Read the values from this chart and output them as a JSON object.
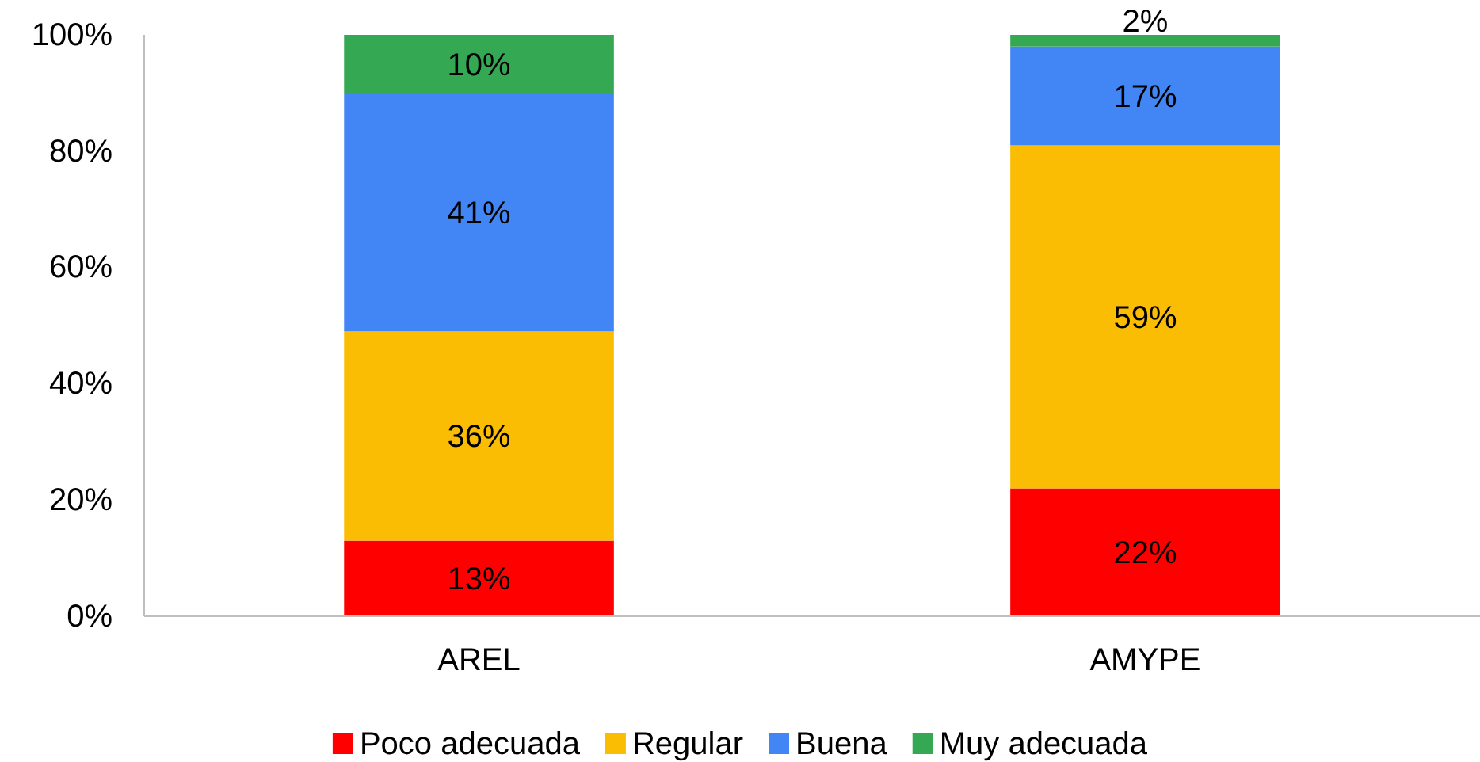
{
  "chart_data": {
    "type": "bar",
    "stacked": true,
    "categories": [
      "AREL",
      "AMYPE"
    ],
    "series": [
      {
        "name": "Poco adecuada",
        "color": "#ff0000",
        "values": [
          13,
          22
        ],
        "value_labels": [
          "13%",
          "22%"
        ]
      },
      {
        "name": "Regular",
        "color": "#fbbc04",
        "values": [
          36,
          59
        ],
        "value_labels": [
          "36%",
          "59%"
        ]
      },
      {
        "name": "Buena",
        "color": "#4285f4",
        "values": [
          41,
          17
        ],
        "value_labels": [
          "41%",
          "17%"
        ]
      },
      {
        "name": "Muy adecuada",
        "color": "#34a853",
        "values": [
          10,
          2
        ],
        "value_labels": [
          "10%",
          "2%"
        ]
      }
    ],
    "ylim": [
      0,
      100
    ],
    "yticks": [
      {
        "value": 0,
        "label": "0%"
      },
      {
        "value": 20,
        "label": "20%"
      },
      {
        "value": 40,
        "label": "40%"
      },
      {
        "value": 60,
        "label": "60%"
      },
      {
        "value": 80,
        "label": "80%"
      },
      {
        "value": 100,
        "label": "100%"
      }
    ],
    "grid": false,
    "legend": "bottom"
  }
}
